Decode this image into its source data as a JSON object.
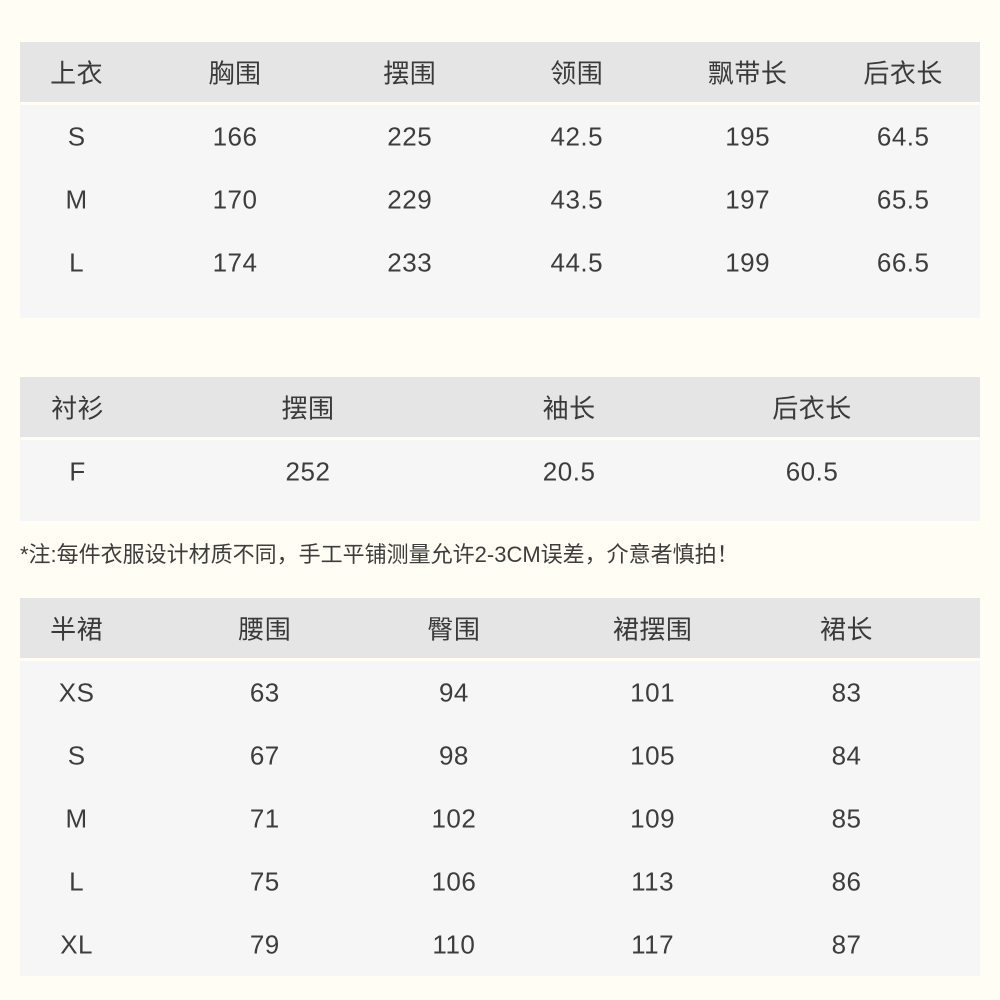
{
  "page": {
    "note": "*注:每件衣服设计材质不同，手工平铺测量允许2-3CM误差，介意者慎拍！"
  },
  "colors": {
    "page_background": "#fffdf4",
    "header_background": "#e5e5e5",
    "body_background": "#f6f6f7",
    "text": "#3d3d3d"
  },
  "tables": [
    {
      "name": "tops",
      "title": "上衣",
      "headers": [
        "上衣",
        "胸围",
        "摆围",
        "领围",
        "飘带长",
        "后衣长"
      ],
      "rows": [
        [
          "S",
          "166",
          "225",
          "42.5",
          "195",
          "64.5"
        ],
        [
          "M",
          "170",
          "229",
          "43.5",
          "197",
          "65.5"
        ],
        [
          "L",
          "174",
          "233",
          "44.5",
          "199",
          "66.5"
        ]
      ]
    },
    {
      "name": "shirt",
      "title": "衬衫",
      "headers": [
        "衬衫",
        "摆围",
        "袖长",
        "后衣长"
      ],
      "rows": [
        [
          "F",
          "252",
          "20.5",
          "60.5"
        ]
      ]
    },
    {
      "name": "skirt",
      "title": "半裙",
      "headers": [
        "半裙",
        "腰围",
        "臀围",
        "裙摆围",
        "裙长"
      ],
      "rows": [
        [
          "XS",
          "63",
          "94",
          "101",
          "83"
        ],
        [
          "S",
          "67",
          "98",
          "105",
          "84"
        ],
        [
          "M",
          "71",
          "102",
          "109",
          "85"
        ],
        [
          "L",
          "75",
          "106",
          "113",
          "86"
        ],
        [
          "XL",
          "79",
          "110",
          "117",
          "87"
        ]
      ]
    }
  ]
}
